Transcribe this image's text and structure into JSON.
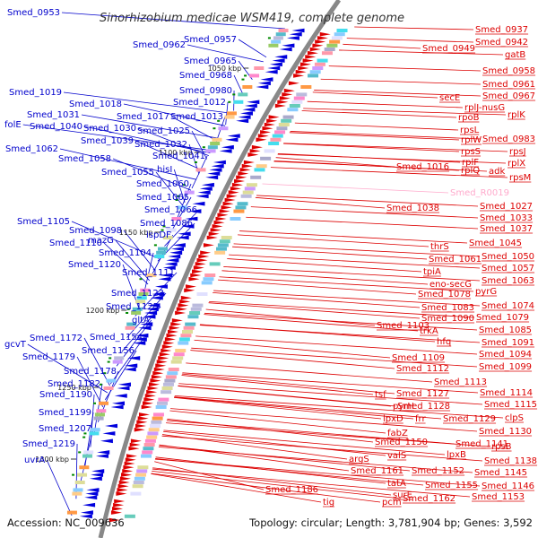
{
  "title": "Sinorhizobium medicae WSM419, complete genome",
  "accession": "Accession: NC_009636",
  "topology": "Topology: circular; Length: 3,781,904 bp; Genes: 3,592",
  "colors": {
    "left_label": "#0000cc",
    "right_label": "#dd0000",
    "rna_label": "#ffaacc",
    "backbone": "#888888",
    "tick_mark": "#008800"
  },
  "scale_labels": [
    "1050 kbp",
    "1100 kbp",
    "1150 kbp",
    "1200 kbp",
    "1250 kbp",
    "1300 kbp"
  ],
  "left_labels": [
    "Smed_0953",
    "Smed_0962",
    "Smed_0957",
    "Smed_0965",
    "Smed_0968",
    "Smed_0980",
    "Smed_1019",
    "Smed_1018",
    "Smed_1012",
    "Smed_1031",
    "Smed_1017",
    "Smed_1013",
    "folE",
    "Smed_1040",
    "Smed_1030",
    "Smed_1025",
    "Smed_1039",
    "Smed_1032",
    "Smed_1062",
    "Smed_1058",
    "Smed_1041",
    "hisI",
    "Smed_1055",
    "Smed_1060",
    "Smed_1065",
    "Smed_1066",
    "Smed_1105",
    "Smed_1086",
    "Smed_1098",
    "ispDF",
    "mazG",
    "Smed_1110",
    "Smed_1104",
    "Smed_1120",
    "Smed_1111",
    "Smed_1123",
    "Smed_1125",
    "gltA",
    "Smed_1154",
    "Smed_1172",
    "gcvT",
    "Smed_1156",
    "Smed_1179",
    "Smed_1178",
    "Smed_1182",
    "Smed_1190",
    "Smed_1199",
    "Smed_1207",
    "Smed_1219",
    "uvrA"
  ],
  "right_labels": [
    "Smed_0937",
    "Smed_0942",
    "Smed_0949",
    "gatB",
    "Smed_0958",
    "Smed_0961",
    "secE",
    "Smed_0967",
    "rplJ-nusG",
    "rplK",
    "rpoB",
    "rpsL",
    "rplW",
    "Smed_0983",
    "rpsS",
    "rpsJ",
    "rplF",
    "rplX",
    "Smed_1016",
    "rplQ",
    "adk",
    "rpsM",
    "Smed_1038",
    "Smed_1027",
    "Smed_1033",
    "Smed_1037",
    "thrS",
    "Smed_1045",
    "Smed_1061",
    "Smed_1050",
    "tpiA",
    "Smed_1057",
    "eno-secG",
    "Smed_1063",
    "Smed_1078",
    "pyrG",
    "Smed_1083",
    "Smed_1074",
    "Smed_1090",
    "Smed_1079",
    "Smed_1103",
    "trkA",
    "Smed_1085",
    "hfq",
    "Smed_1091",
    "Smed_1109",
    "Smed_1094",
    "Smed_1112",
    "Smed_1099",
    "Smed_1113",
    "tsf",
    "Smed_1127",
    "Smed_1114",
    "pyrH",
    "Smed_1128",
    "Smed_1115",
    "lpxD",
    "frr",
    "Smed_1129",
    "clpS",
    "fabZ",
    "Smed_1130",
    "Smed_1150",
    "Smed_1141",
    "rpsB",
    "valS",
    "lpxB",
    "argS",
    "Smed_1138",
    "Smed_1152",
    "Smed_1145",
    "Smed_1161",
    "tatA",
    "Smed_1155",
    "Smed_1146",
    "surE",
    "Smed_1162",
    "Smed_1153",
    "Smed_1186",
    "tig",
    "pcm"
  ],
  "rna_labels": [
    "Smed_R0019"
  ]
}
